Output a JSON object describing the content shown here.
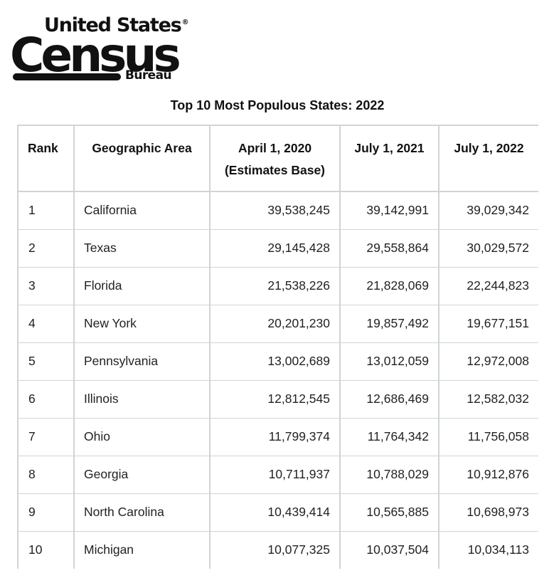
{
  "logo": {
    "line1": "United States",
    "line2": "Census",
    "line3": "Bureau",
    "registered": "®"
  },
  "title": "Top 10 Most Populous States: 2022",
  "columns": {
    "rank": "Rank",
    "area": "Geographic Area",
    "c2020": "April 1, 2020",
    "c2020_sub": "(Estimates Base)",
    "c2021": "July 1, 2021",
    "c2022": "July 1, 2022"
  },
  "rows": [
    {
      "rank": "1",
      "area": "California",
      "v2020": "39,538,245",
      "v2021": "39,142,991",
      "v2022": "39,029,342"
    },
    {
      "rank": "2",
      "area": "Texas",
      "v2020": "29,145,428",
      "v2021": "29,558,864",
      "v2022": "30,029,572"
    },
    {
      "rank": "3",
      "area": "Florida",
      "v2020": "21,538,226",
      "v2021": "21,828,069",
      "v2022": "22,244,823"
    },
    {
      "rank": "4",
      "area": "New York",
      "v2020": "20,201,230",
      "v2021": "19,857,492",
      "v2022": "19,677,151"
    },
    {
      "rank": "5",
      "area": "Pennsylvania",
      "v2020": "13,002,689",
      "v2021": "13,012,059",
      "v2022": "12,972,008"
    },
    {
      "rank": "6",
      "area": "Illinois",
      "v2020": "12,812,545",
      "v2021": "12,686,469",
      "v2022": "12,582,032"
    },
    {
      "rank": "7",
      "area": "Ohio",
      "v2020": "11,799,374",
      "v2021": "11,764,342",
      "v2022": "11,756,058"
    },
    {
      "rank": "8",
      "area": "Georgia",
      "v2020": "10,711,937",
      "v2021": "10,788,029",
      "v2022": "10,912,876"
    },
    {
      "rank": "9",
      "area": "North Carolina",
      "v2020": "10,439,414",
      "v2021": "10,565,885",
      "v2022": "10,698,973"
    },
    {
      "rank": "10",
      "area": "Michigan",
      "v2020": "10,077,325",
      "v2021": "10,037,504",
      "v2022": "10,034,113"
    }
  ]
}
